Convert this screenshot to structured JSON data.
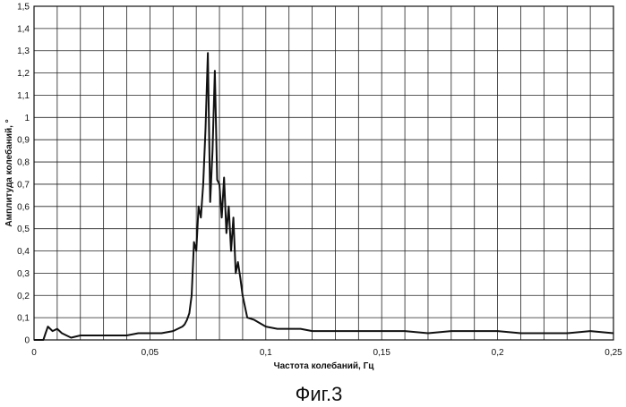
{
  "chart_data": {
    "type": "line",
    "title": "",
    "xlabel": "Частота колебаний, Гц",
    "ylabel": "Амплитуда колебаний, °",
    "xlim": [
      0,
      0.25
    ],
    "ylim": [
      0,
      1.5
    ],
    "x_ticks": [
      0,
      0.05,
      0.1,
      0.15,
      0.2,
      0.25
    ],
    "x_tick_labels": [
      "0",
      "0,05",
      "0,1",
      "0,15",
      "0,2",
      "0,25"
    ],
    "y_ticks": [
      0,
      0.1,
      0.2,
      0.3,
      0.4,
      0.5,
      0.6,
      0.7,
      0.8,
      0.9,
      1.0,
      1.1,
      1.2,
      1.3,
      1.4,
      1.5
    ],
    "y_tick_labels": [
      "0",
      "0,1",
      "0,2",
      "0,3",
      "0,4",
      "0,5",
      "0,6",
      "0,7",
      "0,8",
      "0,9",
      "1",
      "1,1",
      "1,2",
      "1,3",
      "1,4",
      "1,5"
    ],
    "x_minor_step": 0.01,
    "grid": true,
    "legend": "none",
    "line_color": "#111111",
    "series": [
      {
        "x": [
          0.0,
          0.004,
          0.005,
          0.006,
          0.007,
          0.008,
          0.01,
          0.012,
          0.014,
          0.016,
          0.02,
          0.025,
          0.03,
          0.035,
          0.04,
          0.045,
          0.05,
          0.055,
          0.06,
          0.062,
          0.064,
          0.065,
          0.066,
          0.067,
          0.068,
          0.069,
          0.07,
          0.071,
          0.072,
          0.073,
          0.074,
          0.075,
          0.076,
          0.077,
          0.078,
          0.079,
          0.08,
          0.081,
          0.082,
          0.083,
          0.084,
          0.085,
          0.086,
          0.087,
          0.088,
          0.089,
          0.09,
          0.092,
          0.095,
          0.1,
          0.105,
          0.11,
          0.115,
          0.12,
          0.13,
          0.14,
          0.15,
          0.16,
          0.17,
          0.18,
          0.19,
          0.2,
          0.21,
          0.22,
          0.23,
          0.24,
          0.25
        ],
        "y": [
          0.0,
          0.0,
          0.03,
          0.06,
          0.05,
          0.04,
          0.05,
          0.03,
          0.02,
          0.01,
          0.02,
          0.02,
          0.02,
          0.02,
          0.02,
          0.03,
          0.03,
          0.03,
          0.04,
          0.05,
          0.06,
          0.07,
          0.09,
          0.12,
          0.2,
          0.44,
          0.4,
          0.6,
          0.55,
          0.7,
          0.95,
          1.29,
          0.62,
          0.85,
          1.21,
          0.72,
          0.7,
          0.55,
          0.73,
          0.48,
          0.6,
          0.4,
          0.55,
          0.3,
          0.35,
          0.28,
          0.2,
          0.1,
          0.09,
          0.06,
          0.05,
          0.05,
          0.05,
          0.04,
          0.04,
          0.04,
          0.04,
          0.04,
          0.03,
          0.04,
          0.04,
          0.04,
          0.03,
          0.03,
          0.03,
          0.04,
          0.03
        ]
      }
    ]
  },
  "caption": "Фиг.3"
}
